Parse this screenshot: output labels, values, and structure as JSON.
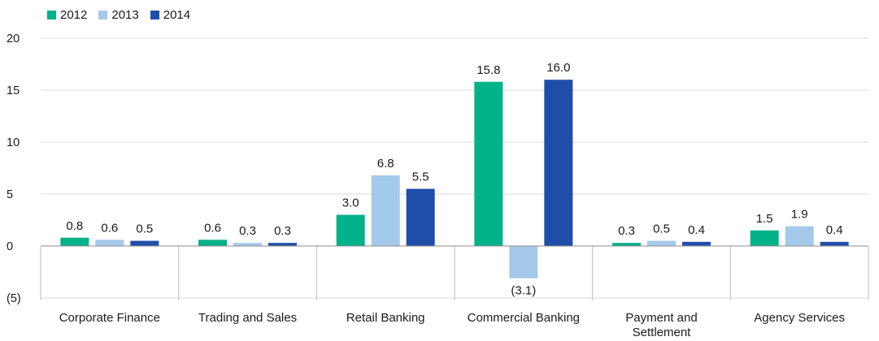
{
  "chart_data": {
    "type": "bar",
    "title": "",
    "xlabel": "",
    "ylabel": "",
    "ylim": [
      -5,
      20
    ],
    "yticks": [
      20,
      15,
      10,
      5,
      0,
      -5
    ],
    "ytick_labels": [
      "20",
      "15",
      "10",
      "5",
      "0",
      "(5)"
    ],
    "grid": true,
    "legend_position": "top-left",
    "categories": [
      [
        "Corporate Finance"
      ],
      [
        "Trading and Sales"
      ],
      [
        "Retail Banking"
      ],
      [
        "Commercial Banking"
      ],
      [
        "Payment and",
        "Settlement"
      ],
      [
        "Agency Services"
      ]
    ],
    "series": [
      {
        "name": "2012",
        "color": "#00b189",
        "values": [
          0.8,
          0.6,
          3.0,
          15.8,
          0.3,
          1.5
        ],
        "labels": [
          "0.8",
          "0.6",
          "3.0",
          "15.8",
          "0.3",
          "1.5"
        ]
      },
      {
        "name": "2013",
        "color": "#a4c9ea",
        "values": [
          0.6,
          0.3,
          6.8,
          -3.1,
          0.5,
          1.9
        ],
        "labels": [
          "0.6",
          "0.3",
          "6.8",
          "(3.1)",
          "0.5",
          "1.9"
        ]
      },
      {
        "name": "2014",
        "color": "#1f4ea8",
        "values": [
          0.5,
          0.3,
          5.5,
          16.0,
          0.4,
          0.4
        ],
        "labels": [
          "0.5",
          "0.3",
          "5.5",
          "16.0",
          "0.4",
          "0.4"
        ]
      }
    ]
  }
}
